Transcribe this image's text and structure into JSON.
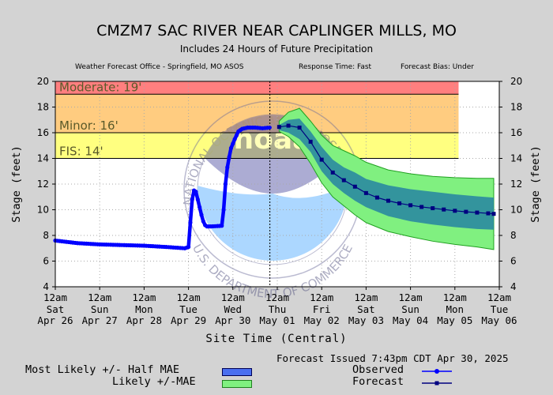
{
  "header": {
    "title": "CMZM7 SAC RIVER NEAR CAPLINGER MILLS, MO",
    "subtitle": "Includes  24 Hours of Future Precipitation",
    "office": "Weather Forecast Office - Springfield, MO ASOS",
    "response": "Response Time: Fast",
    "bias": "Forecast Bias:  Under"
  },
  "footer": {
    "xlabel": "Site Time (Central)",
    "issued": "Forecast Issued 7:43pm CDT Apr 30, 2025"
  },
  "legend": {
    "mae_half": "Most Likely +/- Half MAE",
    "mae": "Likely +/-MAE",
    "observed": "Observed",
    "forecast": "Forecast"
  },
  "colors": {
    "moderate": "#ff7f7f",
    "minor": "#ffcc80",
    "action": "#ffff80",
    "observed": "#0000ff",
    "forecast": "#000080",
    "band_inner": "#2a8aa0",
    "band_outer": "#80f080"
  },
  "watermark": {
    "text_top": "NATIONAL OCEANIC AND ATMOSPHERIC ADMINISTRATION",
    "text_bottom": "U.S. DEPARTMENT OF COMMERCE",
    "logo": "noaa"
  },
  "chart_data": {
    "type": "line",
    "title": "CMZM7 SAC RIVER NEAR CAPLINGER MILLS, MO",
    "ylabel": "Stage (feet)",
    "xlabel": "Site Time (Central)",
    "ylim": [
      4,
      20
    ],
    "yticks": [
      4,
      6,
      8,
      10,
      12,
      14,
      16,
      18,
      20
    ],
    "xlim_hours": [
      0,
      240
    ],
    "x_ticks": [
      {
        "h": 0,
        "l1": "12am",
        "l2": "Sat",
        "l3": "Apr 26"
      },
      {
        "h": 24,
        "l1": "12am",
        "l2": "Sun",
        "l3": "Apr 27"
      },
      {
        "h": 48,
        "l1": "12am",
        "l2": "Mon",
        "l3": "Apr 28"
      },
      {
        "h": 72,
        "l1": "12am",
        "l2": "Tue",
        "l3": "Apr 29"
      },
      {
        "h": 96,
        "l1": "12am",
        "l2": "Wed",
        "l3": "Apr 30"
      },
      {
        "h": 120,
        "l1": "12am",
        "l2": "Thu",
        "l3": "May 01"
      },
      {
        "h": 144,
        "l1": "12am",
        "l2": "Fri",
        "l3": "May 02"
      },
      {
        "h": 168,
        "l1": "12am",
        "l2": "Sat",
        "l3": "May 03"
      },
      {
        "h": 192,
        "l1": "12am",
        "l2": "Sun",
        "l3": "May 04"
      },
      {
        "h": 216,
        "l1": "12am",
        "l2": "Mon",
        "l3": "May 05"
      },
      {
        "h": 240,
        "l1": "12am",
        "l2": "Tue",
        "l3": "May 06"
      }
    ],
    "flood_levels": [
      {
        "name": "Moderate",
        "label": "Moderate: 19'",
        "value": 19,
        "top": 20
      },
      {
        "name": "Minor",
        "label": "Minor: 16'",
        "value": 16,
        "top": 19
      },
      {
        "name": "FIS",
        "label": "FIS: 14'",
        "value": 14,
        "top": 16
      }
    ],
    "now_hour": 116,
    "observed": [
      [
        0,
        7.6
      ],
      [
        12,
        7.4
      ],
      [
        24,
        7.3
      ],
      [
        36,
        7.25
      ],
      [
        48,
        7.2
      ],
      [
        60,
        7.1
      ],
      [
        70,
        7.0
      ],
      [
        72,
        7.1
      ],
      [
        73,
        9.0
      ],
      [
        74,
        10.8
      ],
      [
        75,
        11.5
      ],
      [
        76,
        11.4
      ],
      [
        77,
        10.8
      ],
      [
        78,
        10.2
      ],
      [
        79,
        9.6
      ],
      [
        80,
        9.1
      ],
      [
        81,
        8.8
      ],
      [
        82,
        8.7
      ],
      [
        84,
        8.7
      ],
      [
        90,
        8.75
      ],
      [
        91,
        10.0
      ],
      [
        92,
        12.0
      ],
      [
        93,
        13.3
      ],
      [
        94,
        14.1
      ],
      [
        95,
        14.8
      ],
      [
        97,
        15.5
      ],
      [
        99,
        16.1
      ],
      [
        101,
        16.3
      ],
      [
        104,
        16.4
      ],
      [
        108,
        16.4
      ],
      [
        112,
        16.35
      ],
      [
        116,
        16.4
      ]
    ],
    "forecast": [
      [
        121,
        16.45
      ],
      [
        126,
        16.55
      ],
      [
        132,
        16.4
      ],
      [
        138,
        15.3
      ],
      [
        144,
        13.9
      ],
      [
        150,
        12.9
      ],
      [
        156,
        12.3
      ],
      [
        162,
        11.8
      ],
      [
        168,
        11.3
      ],
      [
        174,
        10.95
      ],
      [
        180,
        10.7
      ],
      [
        186,
        10.5
      ],
      [
        192,
        10.35
      ],
      [
        198,
        10.22
      ],
      [
        204,
        10.12
      ],
      [
        210,
        10.02
      ],
      [
        216,
        9.92
      ],
      [
        222,
        9.84
      ],
      [
        228,
        9.78
      ],
      [
        234,
        9.72
      ],
      [
        237,
        9.68
      ]
    ],
    "band_half_mae": [
      [
        121,
        16.2,
        16.6
      ],
      [
        126,
        16.0,
        17.0
      ],
      [
        132,
        15.5,
        17.1
      ],
      [
        138,
        14.5,
        16.1
      ],
      [
        144,
        13.0,
        14.9
      ],
      [
        150,
        12.0,
        13.9
      ],
      [
        156,
        11.3,
        13.3
      ],
      [
        162,
        10.7,
        12.9
      ],
      [
        168,
        10.2,
        12.4
      ],
      [
        180,
        9.5,
        11.9
      ],
      [
        192,
        9.1,
        11.6
      ],
      [
        204,
        8.85,
        11.4
      ],
      [
        216,
        8.65,
        11.2
      ],
      [
        228,
        8.5,
        11.05
      ],
      [
        237,
        8.45,
        10.95
      ]
    ],
    "band_mae": [
      [
        121,
        16.1,
        16.9
      ],
      [
        126,
        15.7,
        17.6
      ],
      [
        132,
        14.9,
        17.9
      ],
      [
        138,
        13.6,
        16.9
      ],
      [
        144,
        12.1,
        15.8
      ],
      [
        150,
        11.0,
        15.0
      ],
      [
        156,
        10.3,
        14.6
      ],
      [
        162,
        9.6,
        14.2
      ],
      [
        168,
        9.0,
        13.7
      ],
      [
        180,
        8.3,
        13.1
      ],
      [
        192,
        7.9,
        12.8
      ],
      [
        204,
        7.55,
        12.6
      ],
      [
        216,
        7.3,
        12.5
      ],
      [
        228,
        7.1,
        12.45
      ],
      [
        237,
        6.9,
        12.45
      ]
    ]
  }
}
